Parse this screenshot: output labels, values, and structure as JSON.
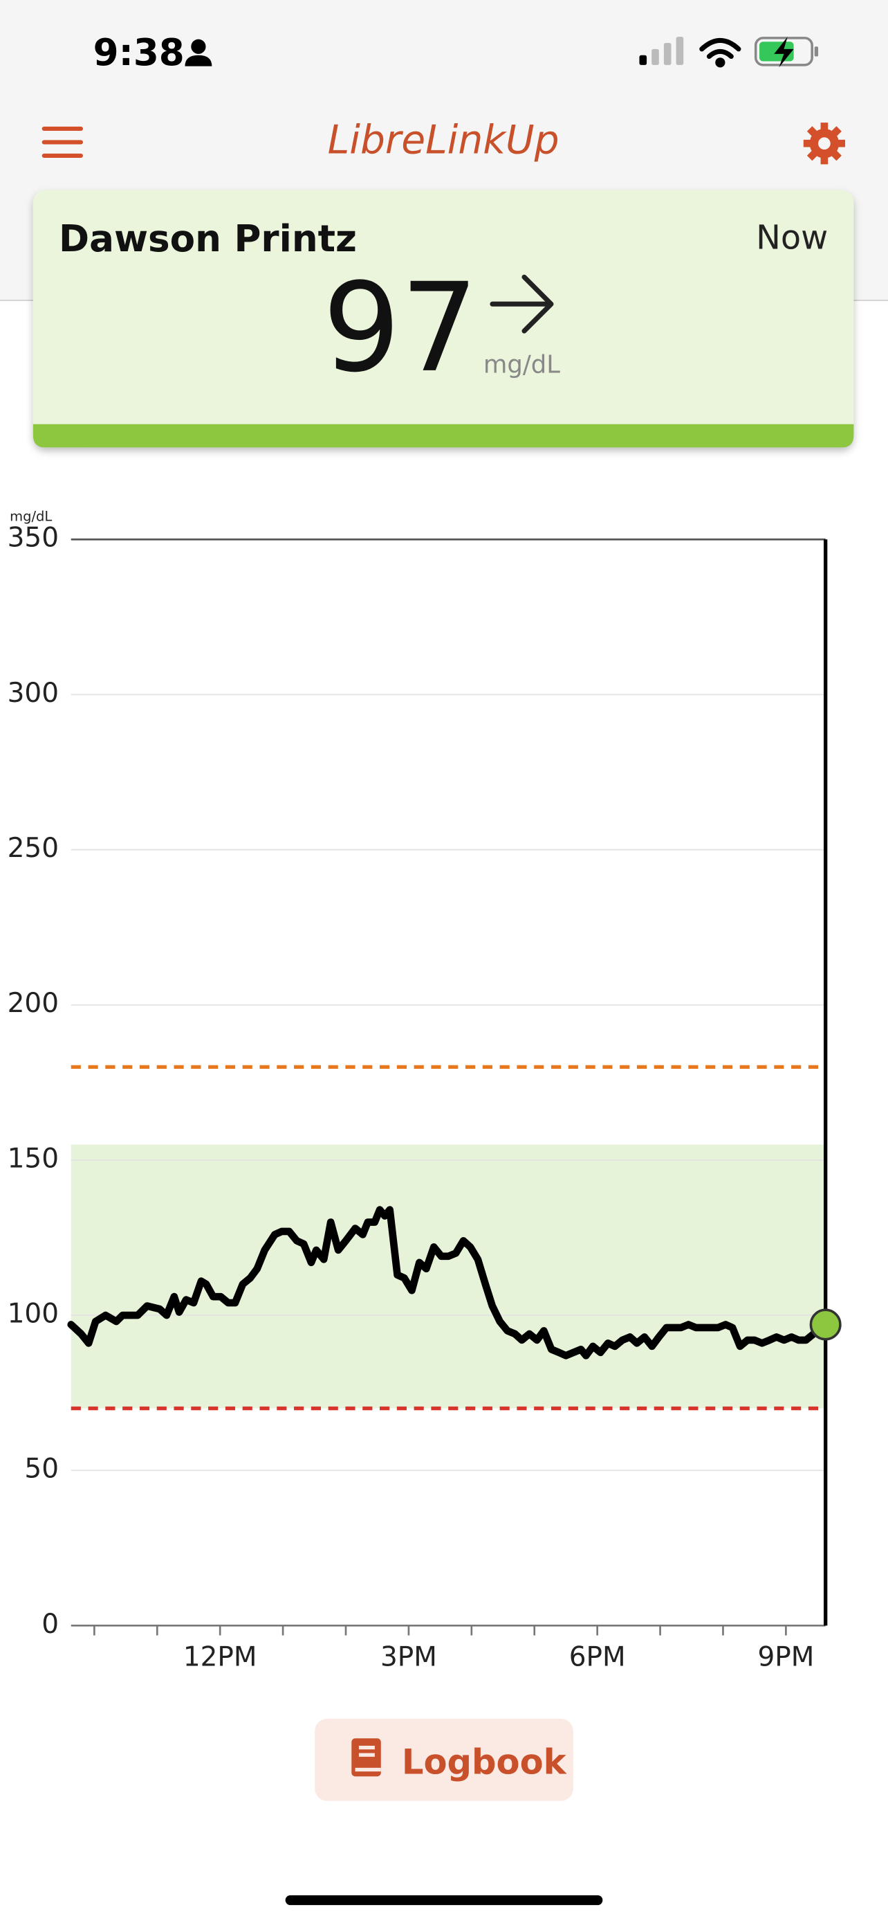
{
  "status_bar": {
    "time": "9:38"
  },
  "header": {
    "title": "LibreLinkUp"
  },
  "card": {
    "name": "Dawson Printz",
    "time": "Now",
    "value": 97,
    "unit": "mg/dL"
  },
  "chart_data": {
    "type": "line",
    "y_label": "mg/dL",
    "xlim": [
      9.63,
      21.63
    ],
    "xticks": [
      {
        "value": 12,
        "label": "12PM"
      },
      {
        "value": 15,
        "label": "3PM"
      },
      {
        "value": 18,
        "label": "6PM"
      },
      {
        "value": 21,
        "label": "9PM"
      }
    ],
    "xminorticks": [
      10,
      11,
      13,
      14,
      16,
      17,
      19,
      20
    ],
    "ylim": [
      0,
      350
    ],
    "yticks": [
      0,
      50,
      100,
      150,
      200,
      250,
      300,
      350
    ],
    "grid": true,
    "target_range": [
      70,
      155
    ],
    "target_color": "#e6f3d9",
    "high_line": 180,
    "high_color": "#e8781e",
    "low_line": 70,
    "low_color": "#d9342b",
    "color": "#000000",
    "current_color": "#8dc63f",
    "x": [
      9.63,
      9.79,
      9.91,
      10.02,
      10.18,
      10.35,
      10.45,
      10.69,
      10.84,
      11.04,
      11.15,
      11.27,
      11.35,
      11.46,
      11.58,
      11.7,
      11.78,
      11.89,
      12.01,
      12.13,
      12.24,
      12.36,
      12.48,
      12.59,
      12.71,
      12.87,
      12.98,
      13.1,
      13.22,
      13.33,
      13.45,
      13.53,
      13.65,
      13.76,
      13.88,
      14.0,
      14.15,
      14.27,
      14.35,
      14.46,
      14.54,
      14.62,
      14.7,
      14.82,
      14.93,
      15.05,
      15.17,
      15.28,
      15.4,
      15.52,
      15.63,
      15.75,
      15.87,
      15.98,
      16.1,
      16.22,
      16.33,
      16.45,
      16.57,
      16.69,
      16.8,
      16.92,
      17.04,
      17.15,
      17.27,
      17.39,
      17.5,
      17.62,
      17.74,
      17.82,
      17.93,
      18.05,
      18.17,
      18.28,
      18.4,
      18.52,
      18.63,
      18.75,
      18.87,
      18.98,
      19.1,
      19.22,
      19.33,
      19.45,
      19.57,
      19.69,
      19.8,
      19.92,
      20.04,
      20.15,
      20.27,
      20.39,
      20.5,
      20.62,
      20.74,
      20.85,
      20.97,
      21.09,
      21.2,
      21.32,
      21.44,
      21.63
    ],
    "values": [
      97,
      94,
      91,
      98,
      100,
      98,
      100,
      100,
      103,
      102,
      100,
      106,
      101,
      105,
      104,
      111,
      110,
      106,
      106,
      104,
      104,
      110,
      112,
      115,
      121,
      126,
      127,
      127,
      124,
      123,
      117,
      121,
      118,
      130,
      121,
      124,
      128,
      126,
      130,
      130,
      134,
      132,
      134,
      113,
      112,
      108,
      117,
      115,
      122,
      119,
      119,
      120,
      124,
      122,
      118,
      110,
      103,
      98,
      95,
      94,
      92,
      94,
      92,
      95,
      89,
      88,
      87,
      88,
      89,
      87,
      90,
      88,
      91,
      90,
      92,
      93,
      91,
      93,
      90,
      93,
      96,
      96,
      96,
      97,
      96,
      96,
      96,
      96,
      97,
      96,
      90,
      92,
      92,
      91,
      92,
      93,
      92,
      93,
      92,
      92,
      94,
      97
    ]
  },
  "logbook": {
    "label": "Logbook"
  }
}
